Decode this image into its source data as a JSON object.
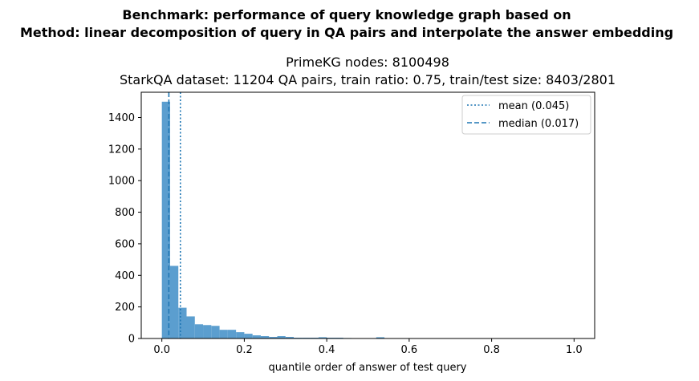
{
  "chart_data": {
    "type": "bar",
    "suptitle": [
      "Benchmark: performance of query knowledge graph based on",
      "Method: linear decomposition of query in QA pairs and interpolate the answer embedding"
    ],
    "title": [
      "PrimeKG nodes: 8100498",
      "StarkQA dataset: 11204 QA pairs, train ratio: 0.75, train/test size: 8403/2801"
    ],
    "xlabel": "quantile order of answer of test query",
    "ylabel": "",
    "xlim": [
      -0.05,
      1.05
    ],
    "ylim": [
      0,
      1560
    ],
    "xticks": [
      0.0,
      0.2,
      0.4,
      0.6,
      0.8,
      1.0
    ],
    "xtick_labels": [
      "0.0",
      "0.2",
      "0.4",
      "0.6",
      "0.8",
      "1.0"
    ],
    "yticks": [
      0,
      200,
      400,
      600,
      800,
      1000,
      1200,
      1400
    ],
    "ytick_labels": [
      "0",
      "200",
      "400",
      "600",
      "800",
      "1000",
      "1200",
      "1400"
    ],
    "bin_width": 0.02,
    "bin_starts": [
      0.0,
      0.02,
      0.04,
      0.06,
      0.08,
      0.1,
      0.12,
      0.14,
      0.16,
      0.18,
      0.2,
      0.22,
      0.24,
      0.26,
      0.28,
      0.3,
      0.32,
      0.34,
      0.36,
      0.38,
      0.4,
      0.42,
      0.44,
      0.46,
      0.48,
      0.5,
      0.52,
      0.54,
      0.56,
      0.58,
      0.6,
      0.62,
      0.64,
      0.66,
      0.68,
      0.7,
      0.72,
      0.74,
      0.76,
      0.78,
      0.8,
      0.82,
      0.84,
      0.86,
      0.88,
      0.9,
      0.92,
      0.94,
      0.96,
      0.98
    ],
    "values": [
      1500,
      460,
      195,
      140,
      90,
      85,
      80,
      55,
      55,
      40,
      30,
      20,
      15,
      10,
      15,
      10,
      5,
      5,
      5,
      8,
      5,
      5,
      3,
      2,
      1,
      1,
      8,
      1,
      1,
      1,
      1,
      1,
      0,
      0,
      0,
      0,
      0,
      0,
      0,
      0,
      0,
      0,
      0,
      0,
      0,
      0,
      0,
      0,
      0,
      1
    ],
    "bar_color": "#5b9ecf",
    "lines": [
      {
        "label": "mean (0.045)",
        "x": 0.045,
        "style": "dotted",
        "color": "#1f77b4"
      },
      {
        "label": "median (0.017)",
        "x": 0.017,
        "style": "dashed",
        "color": "#1f77b4"
      }
    ],
    "legend_position": "top-right",
    "grid": false
  }
}
